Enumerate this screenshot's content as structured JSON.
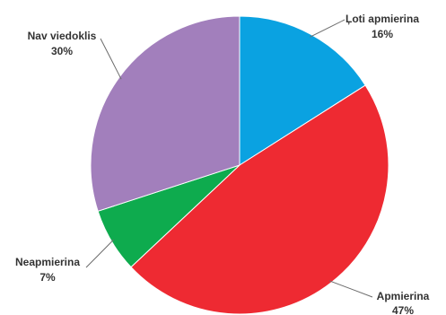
{
  "chart_data": {
    "type": "pie",
    "slices": [
      {
        "label": "Ļoti apmierina",
        "value": 16,
        "value_label": "16%",
        "color": "#0aa2e1"
      },
      {
        "label": "Apmierina",
        "value": 47,
        "value_label": "47%",
        "color": "#ee2a32"
      },
      {
        "label": "Neapmierina",
        "value": 7,
        "value_label": "7%",
        "color": "#0eab4e"
      },
      {
        "label": "Nav viedoklis",
        "value": 30,
        "value_label": "30%",
        "color": "#a27fbc"
      }
    ],
    "start": "12 o'clock",
    "direction": "clockwise",
    "legend": "none"
  }
}
